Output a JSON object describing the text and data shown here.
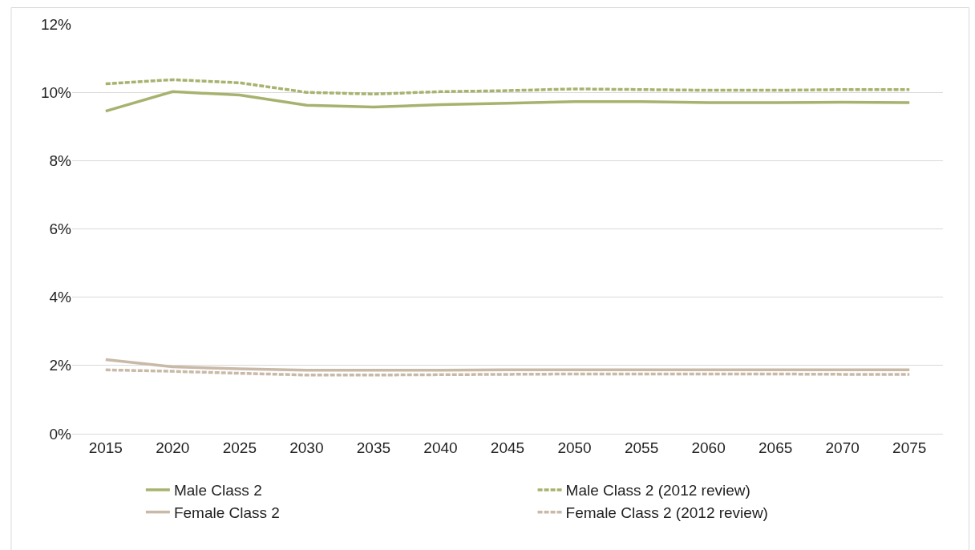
{
  "chart_data": {
    "type": "line",
    "categories": [
      "2015",
      "2020",
      "2025",
      "2030",
      "2035",
      "2040",
      "2045",
      "2050",
      "2055",
      "2060",
      "2065",
      "2070",
      "2075"
    ],
    "series": [
      {
        "name": "Male Class 2",
        "color": "#a8b26e",
        "line_style": "solid",
        "values": [
          9.45,
          10.02,
          9.92,
          9.62,
          9.57,
          9.64,
          9.68,
          9.73,
          9.73,
          9.7,
          9.7,
          9.71,
          9.7
        ]
      },
      {
        "name": "Male Class 2 (2012 review)",
        "color": "#a8b26e",
        "line_style": "dashed",
        "values": [
          10.25,
          10.37,
          10.28,
          10.0,
          9.95,
          10.02,
          10.05,
          10.1,
          10.08,
          10.06,
          10.06,
          10.08,
          10.08
        ]
      },
      {
        "name": "Female Class 2",
        "color": "#c9b9a7",
        "line_style": "solid",
        "values": [
          2.17,
          1.96,
          1.9,
          1.86,
          1.86,
          1.86,
          1.87,
          1.87,
          1.87,
          1.87,
          1.87,
          1.87,
          1.87
        ]
      },
      {
        "name": "Female Class 2 (2012 review)",
        "color": "#c9b9a7",
        "line_style": "dashed",
        "values": [
          1.87,
          1.83,
          1.77,
          1.72,
          1.72,
          1.73,
          1.74,
          1.75,
          1.75,
          1.75,
          1.75,
          1.74,
          1.74
        ]
      }
    ],
    "ylim": [
      0,
      12
    ],
    "yticks": [
      {
        "value": 0,
        "label": "0%"
      },
      {
        "value": 2,
        "label": "2%"
      },
      {
        "value": 4,
        "label": "4%"
      },
      {
        "value": 6,
        "label": "6%"
      },
      {
        "value": 8,
        "label": "8%"
      },
      {
        "value": 10,
        "label": "10%"
      },
      {
        "value": 12,
        "label": "12%"
      }
    ],
    "grid": "y",
    "legend": "bottom",
    "marker": "none"
  }
}
